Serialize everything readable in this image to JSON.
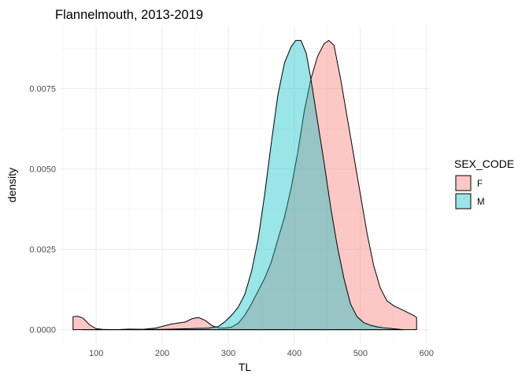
{
  "chart_data": {
    "type": "area",
    "title": "Flannelmouth, 2013-2019",
    "xlabel": "TL",
    "ylabel": "density",
    "xlim": [
      45,
      605
    ],
    "ylim": [
      -0.00045,
      0.00945
    ],
    "x_ticks": [
      {
        "value": 100,
        "label": "100"
      },
      {
        "value": 200,
        "label": "200"
      },
      {
        "value": 300,
        "label": "300"
      },
      {
        "value": 400,
        "label": "400"
      },
      {
        "value": 500,
        "label": "500"
      },
      {
        "value": 600,
        "label": "600"
      }
    ],
    "y_ticks": [
      {
        "value": 0,
        "label": "0.0000"
      },
      {
        "value": 0.0025,
        "label": "0.0025"
      },
      {
        "value": 0.005,
        "label": "0.0050"
      },
      {
        "value": 0.0075,
        "label": "0.0075"
      }
    ],
    "grid": true,
    "legend": {
      "title": "SEX_CODE",
      "position": "right"
    },
    "series": [
      {
        "name": "F",
        "color": "#F8766D",
        "points": [
          [
            65,
            0.0004
          ],
          [
            72,
            0.00042
          ],
          [
            80,
            0.00036
          ],
          [
            90,
            0.00015
          ],
          [
            100,
            3e-05
          ],
          [
            110,
            1e-05
          ],
          [
            130,
            0
          ],
          [
            150,
            2e-05
          ],
          [
            170,
            1e-05
          ],
          [
            190,
            5e-05
          ],
          [
            205,
            0.00013
          ],
          [
            215,
            0.00018
          ],
          [
            225,
            0.00021
          ],
          [
            235,
            0.00024
          ],
          [
            245,
            0.00034
          ],
          [
            255,
            0.00038
          ],
          [
            265,
            0.00029
          ],
          [
            275,
            0.00013
          ],
          [
            285,
            6e-05
          ],
          [
            295,
            5e-05
          ],
          [
            305,
            8e-05
          ],
          [
            315,
            0.0002
          ],
          [
            325,
            0.00045
          ],
          [
            335,
            0.0008
          ],
          [
            345,
            0.0012
          ],
          [
            355,
            0.0016
          ],
          [
            365,
            0.0021
          ],
          [
            375,
            0.0028
          ],
          [
            385,
            0.0035
          ],
          [
            395,
            0.0044
          ],
          [
            405,
            0.0055
          ],
          [
            415,
            0.0068
          ],
          [
            425,
            0.0078
          ],
          [
            435,
            0.0085
          ],
          [
            445,
            0.0089
          ],
          [
            452,
            0.009
          ],
          [
            460,
            0.00885
          ],
          [
            470,
            0.0078
          ],
          [
            480,
            0.0066
          ],
          [
            490,
            0.0054
          ],
          [
            500,
            0.0042
          ],
          [
            510,
            0.003
          ],
          [
            520,
            0.002
          ],
          [
            530,
            0.0013
          ],
          [
            540,
            0.0009
          ],
          [
            550,
            0.00075
          ],
          [
            560,
            0.00065
          ],
          [
            570,
            0.00055
          ],
          [
            580,
            0.00045
          ],
          [
            585,
            0.00038
          ]
        ]
      },
      {
        "name": "M",
        "color": "#00BFC4",
        "points": [
          [
            80,
            0
          ],
          [
            120,
            0
          ],
          [
            160,
            1e-05
          ],
          [
            200,
            1e-05
          ],
          [
            240,
            3e-05
          ],
          [
            270,
            5e-05
          ],
          [
            285,
            0.0001
          ],
          [
            295,
            0.00025
          ],
          [
            305,
            0.00045
          ],
          [
            315,
            0.0007
          ],
          [
            325,
            0.0011
          ],
          [
            335,
            0.0018
          ],
          [
            345,
            0.0028
          ],
          [
            355,
            0.0042
          ],
          [
            365,
            0.0058
          ],
          [
            375,
            0.0073
          ],
          [
            385,
            0.0083
          ],
          [
            395,
            0.0088
          ],
          [
            402,
            0.009
          ],
          [
            410,
            0.009
          ],
          [
            418,
            0.0086
          ],
          [
            425,
            0.0078
          ],
          [
            435,
            0.0065
          ],
          [
            445,
            0.0052
          ],
          [
            455,
            0.0038
          ],
          [
            465,
            0.0026
          ],
          [
            475,
            0.0016
          ],
          [
            485,
            0.0008
          ],
          [
            495,
            0.0004
          ],
          [
            505,
            0.00022
          ],
          [
            515,
            0.00014
          ],
          [
            525,
            9e-05
          ],
          [
            535,
            6e-05
          ],
          [
            545,
            4e-05
          ],
          [
            555,
            2e-05
          ],
          [
            565,
            0
          ]
        ]
      }
    ]
  }
}
